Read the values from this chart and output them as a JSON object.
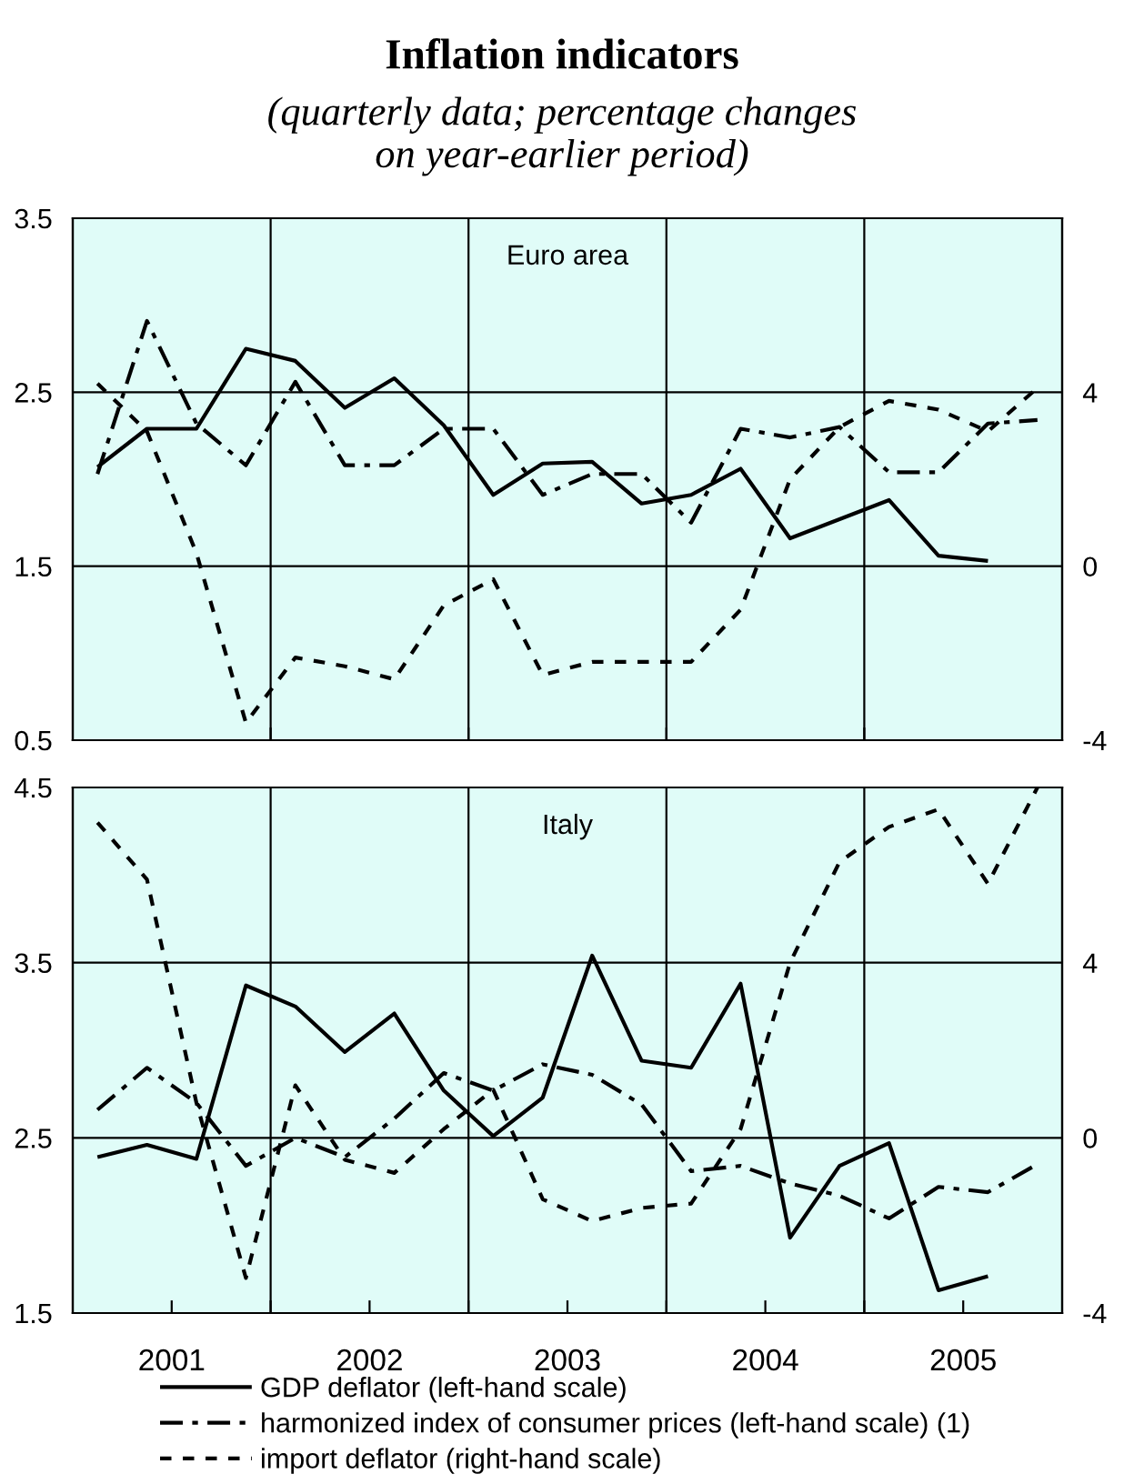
{
  "chart_data": [
    {
      "type": "line",
      "title": "Inflation indicators",
      "subtitle": "(quarterly data; percentage changes\non year-earlier period)",
      "annotations": [
        "Euro area"
      ],
      "x": [
        2001.125,
        2001.375,
        2001.625,
        2001.875,
        2002.125,
        2002.375,
        2002.625,
        2002.875,
        2003.125,
        2003.375,
        2003.625,
        2003.875,
        2004.125,
        2004.375,
        2004.625,
        2004.875,
        2005.125,
        2005.375,
        2005.625,
        2005.875
      ],
      "series": [
        {
          "color": "#000000",
          "line_style": "solid",
          "values": [
            2.07,
            2.29,
            2.29,
            2.75,
            2.68,
            2.41,
            2.58,
            2.31,
            1.91,
            2.09,
            2.1,
            1.86,
            1.91,
            2.06,
            1.66,
            1.77,
            1.88,
            1.56,
            1.53,
            null
          ]
        },
        {
          "color": "#000000",
          "line_style": "dashed",
          "values": [
            2.03,
            2.91,
            2.32,
            2.08,
            2.56,
            2.08,
            2.08,
            2.29,
            2.29,
            1.91,
            2.03,
            2.03,
            1.75,
            2.29,
            2.24,
            2.3,
            2.04,
            2.04,
            2.32,
            2.34
          ]
        },
        {
          "color": "#000000",
          "line_style": "dotted",
          "axis": "y2",
          "values": [
            4.2,
            3.1,
            0.3,
            -3.6,
            -2.1,
            -2.3,
            -2.6,
            -0.9,
            -0.3,
            -2.5,
            -2.2,
            -2.2,
            -2.2,
            -1.0,
            2.0,
            3.2,
            3.8,
            3.6,
            3.1,
            4.1
          ]
        }
      ],
      "xlim": [
        2001,
        2006
      ],
      "xticks": [
        {
          "value": 2002,
          "label": null
        },
        {
          "value": 2003,
          "label": null
        },
        {
          "value": 2004,
          "label": null
        },
        {
          "value": 2005,
          "label": null
        }
      ],
      "ylim": [
        0.5,
        3.5
      ],
      "yticks": [
        0.5,
        1.5,
        2.5,
        3.5
      ],
      "y2lim": [
        -4,
        8
      ],
      "y2ticks": [
        -4,
        0,
        4
      ],
      "grid": true,
      "tick_labels": "y",
      "legend": false
    },
    {
      "type": "line",
      "annotations": [
        "Italy"
      ],
      "x": [
        2001.125,
        2001.375,
        2001.625,
        2001.875,
        2002.125,
        2002.375,
        2002.625,
        2002.875,
        2003.125,
        2003.375,
        2003.625,
        2003.875,
        2004.125,
        2004.375,
        2004.625,
        2004.875,
        2005.125,
        2005.375,
        2005.625,
        2005.875
      ],
      "series": [
        {
          "name": "GDP deflator (left-hand scale)",
          "color": "#000000",
          "line_style": "solid",
          "values": [
            2.39,
            2.46,
            2.38,
            3.37,
            3.25,
            2.99,
            3.21,
            2.77,
            2.51,
            2.73,
            3.54,
            2.94,
            2.9,
            3.38,
            1.93,
            2.34,
            2.47,
            1.63,
            1.71,
            null
          ]
        },
        {
          "name": "harmonized index of consumer prices (left-hand scale) (1)",
          "color": "#000000",
          "line_style": "dashed",
          "values": [
            2.66,
            2.9,
            2.7,
            2.34,
            2.5,
            2.39,
            2.61,
            2.87,
            2.77,
            2.92,
            2.86,
            2.69,
            2.31,
            2.34,
            2.24,
            2.17,
            2.04,
            2.22,
            2.19,
            2.35
          ]
        },
        {
          "name": "import deflator (right-hand scale)",
          "color": "#000000",
          "line_style": "dotted",
          "axis": "y2",
          "values": [
            7.2,
            5.9,
            0.8,
            -3.2,
            1.2,
            -0.5,
            -0.8,
            0.2,
            1.1,
            -1.4,
            -1.9,
            -1.6,
            -1.5,
            0.2,
            4.0,
            6.3,
            7.1,
            7.5,
            5.8,
            8.0
          ]
        }
      ],
      "xlim": [
        2001,
        2006
      ],
      "xticks": [
        {
          "value": 2001.5,
          "label": "2001"
        },
        {
          "value": 2002,
          "label": null
        },
        {
          "value": 2002.5,
          "label": "2002"
        },
        {
          "value": 2003,
          "label": null
        },
        {
          "value": 2003.5,
          "label": "2003"
        },
        {
          "value": 2004,
          "label": null
        },
        {
          "value": 2004.5,
          "label": "2004"
        },
        {
          "value": 2005,
          "label": null
        },
        {
          "value": 2005.5,
          "label": "2005"
        }
      ],
      "ylim": [
        1.5,
        4.5
      ],
      "yticks": [
        1.5,
        2.5,
        3.5,
        4.5
      ],
      "y2lim": [
        -4,
        8
      ],
      "y2ticks": [
        -4,
        0,
        4
      ],
      "grid": true,
      "legend": "bottom"
    }
  ]
}
